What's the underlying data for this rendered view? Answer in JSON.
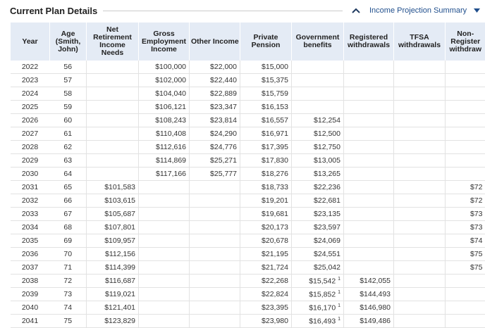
{
  "header": {
    "title": "Current Plan Details",
    "link": "Income Projection Summary"
  },
  "table": {
    "columns": [
      [
        "Year"
      ],
      [
        "Age",
        "(Smith,",
        "John)"
      ],
      [
        "Net",
        "Retirement",
        "Income",
        "Needs"
      ],
      [
        "Gross",
        "Employment",
        "Income"
      ],
      [
        "Other Income"
      ],
      [
        "Private",
        "Pension"
      ],
      [
        "Government",
        "benefits"
      ],
      [
        "Registered",
        "withdrawals"
      ],
      [
        "TFSA",
        "withdrawals"
      ],
      [
        "Non-",
        "Register",
        "withdraw"
      ]
    ],
    "rows": [
      [
        "2022",
        "56",
        null,
        "$100,000",
        "$22,000",
        "$15,000",
        null,
        null,
        null,
        null
      ],
      [
        "2023",
        "57",
        null,
        "$102,000",
        "$22,440",
        "$15,375",
        null,
        null,
        null,
        null
      ],
      [
        "2024",
        "58",
        null,
        "$104,040",
        "$22,889",
        "$15,759",
        null,
        null,
        null,
        null
      ],
      [
        "2025",
        "59",
        null,
        "$106,121",
        "$23,347",
        "$16,153",
        null,
        null,
        null,
        null
      ],
      [
        "2026",
        "60",
        null,
        "$108,243",
        "$23,814",
        "$16,557",
        "$12,254",
        null,
        null,
        null
      ],
      [
        "2027",
        "61",
        null,
        "$110,408",
        "$24,290",
        "$16,971",
        "$12,500",
        null,
        null,
        null
      ],
      [
        "2028",
        "62",
        null,
        "$112,616",
        "$24,776",
        "$17,395",
        "$12,750",
        null,
        null,
        null
      ],
      [
        "2029",
        "63",
        null,
        "$114,869",
        "$25,271",
        "$17,830",
        "$13,005",
        null,
        null,
        null
      ],
      [
        "2030",
        "64",
        null,
        "$117,166",
        "$25,777",
        "$18,276",
        "$13,265",
        null,
        null,
        null
      ],
      [
        "2031",
        "65",
        "$101,583",
        null,
        null,
        "$18,733",
        "$22,236",
        null,
        null,
        "$72"
      ],
      [
        "2032",
        "66",
        "$103,615",
        null,
        null,
        "$19,201",
        "$22,681",
        null,
        null,
        "$72"
      ],
      [
        "2033",
        "67",
        "$105,687",
        null,
        null,
        "$19,681",
        "$23,135",
        null,
        null,
        "$73"
      ],
      [
        "2034",
        "68",
        "$107,801",
        null,
        null,
        "$20,173",
        "$23,597",
        null,
        null,
        "$73"
      ],
      [
        "2035",
        "69",
        "$109,957",
        null,
        null,
        "$20,678",
        "$24,069",
        null,
        null,
        "$74"
      ],
      [
        "2036",
        "70",
        "$112,156",
        null,
        null,
        "$21,195",
        "$24,551",
        null,
        null,
        "$75"
      ],
      [
        "2037",
        "71",
        "$114,399",
        null,
        null,
        "$21,724",
        "$25,042",
        null,
        null,
        "$75"
      ],
      [
        "2038",
        "72",
        "$116,687",
        null,
        null,
        "$22,268",
        {
          "text": "$15,542",
          "note": "1"
        },
        "$142,055",
        null,
        null
      ],
      [
        "2039",
        "73",
        "$119,021",
        null,
        null,
        "$22,824",
        {
          "text": "$15,852",
          "note": "1"
        },
        "$144,493",
        null,
        null
      ],
      [
        "2040",
        "74",
        "$121,401",
        null,
        null,
        "$23,395",
        {
          "text": "$16,170",
          "note": "1"
        },
        "$146,980",
        null,
        null
      ],
      [
        "2041",
        "75",
        "$123,829",
        null,
        null,
        "$23,980",
        {
          "text": "$16,493",
          "note": "1"
        },
        "$149,486",
        null,
        null
      ]
    ]
  }
}
